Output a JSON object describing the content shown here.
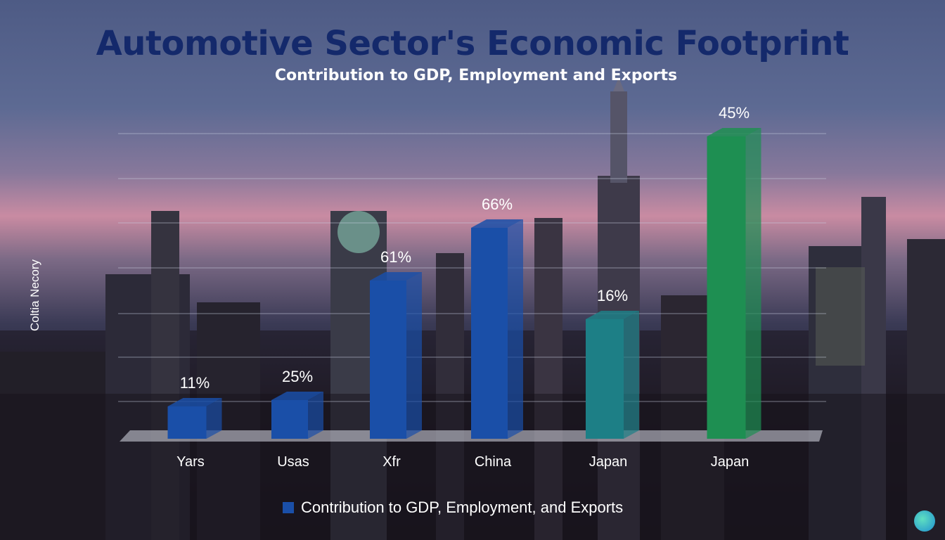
{
  "title": "Automotive Sector's Economic Footprint",
  "subtitle": "Contribution to GDP, Employment and Exports",
  "colors": {
    "title": "#14296b",
    "bar_blue": "#1a4fa8",
    "bar_teal": "#1d7f86",
    "bar_green": "#1e8f52",
    "grid": "#c9cde0"
  },
  "chart_data": {
    "type": "bar",
    "title": "Automotive Sector's Economic Footprint",
    "subtitle": "Contribution to GDP, Employment and Exports",
    "ylabel": "Coltia Necory",
    "xlabel": "",
    "categories": [
      "Yars",
      "Usas",
      "Xfr",
      "China",
      "Japan",
      "Japan"
    ],
    "series": [
      {
        "name": "Contribution to GDP, Employment, and Exports",
        "values": [
          11,
          25,
          61,
          66,
          16,
          45
        ],
        "labels": [
          "11%",
          "25%",
          "61%",
          "66%",
          "16%",
          "45%"
        ],
        "colors": [
          "#1a4fa8",
          "#1a4fa8",
          "#1a4fa8",
          "#1a4fa8",
          "#1d7f86",
          "#1e8f52"
        ]
      }
    ],
    "grid": true,
    "legend_position": "bottom-center"
  },
  "legend": {
    "label": "Contribution to GDP, Employment, and Exports"
  }
}
